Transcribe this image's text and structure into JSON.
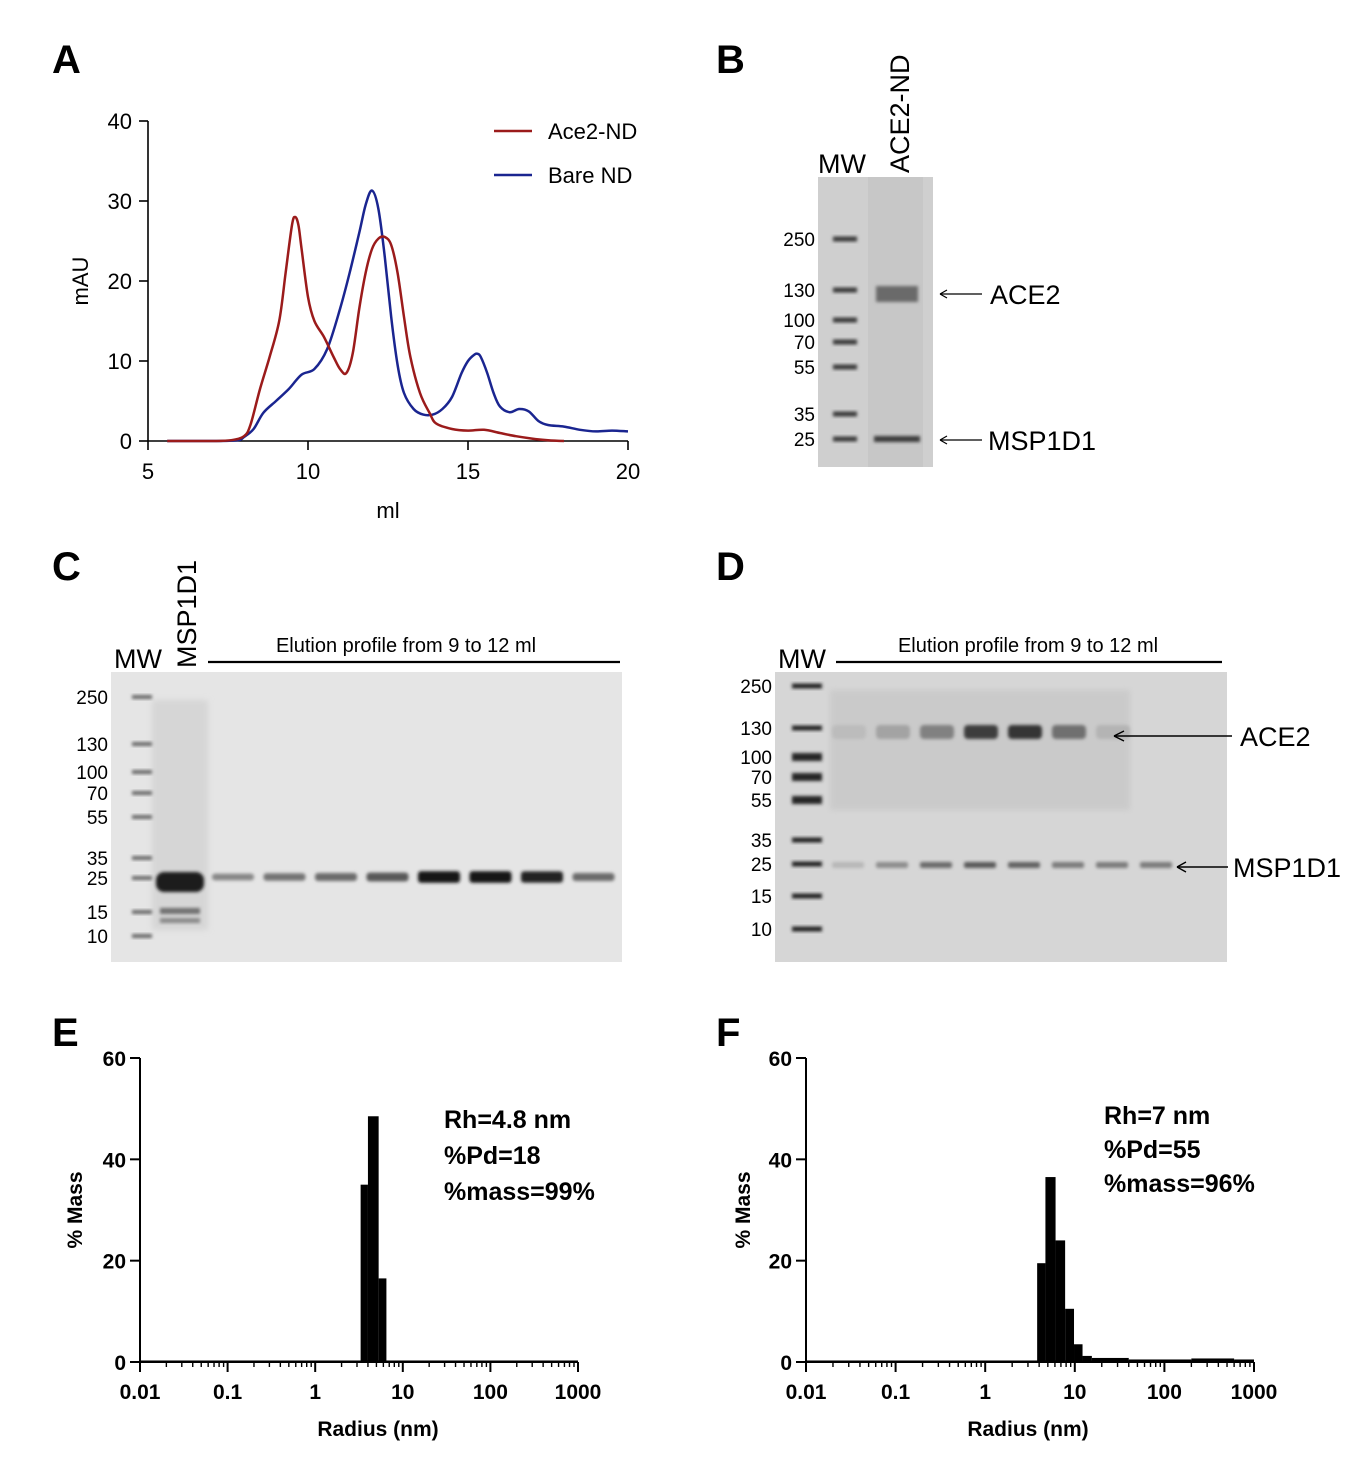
{
  "panel_labels": {
    "a": "A",
    "b": "B",
    "c": "C",
    "d": "D",
    "e": "E",
    "f": "F"
  },
  "chart_data": [
    {
      "panel": "A",
      "type": "line",
      "xlabel": "ml",
      "ylabel": "mAU",
      "xlim": [
        5,
        20
      ],
      "ylim": [
        0,
        40
      ],
      "xticks": [
        "5",
        "10",
        "15",
        "20"
      ],
      "yticks": [
        "0",
        "10",
        "20",
        "30",
        "40"
      ],
      "legend_position": "top-right",
      "grid": false,
      "series": [
        {
          "name": "Ace2-ND",
          "color": "#9b1b1b",
          "x": [
            5.6,
            7.0,
            7.6,
            8.0,
            8.2,
            8.5,
            8.8,
            9.1,
            9.3,
            9.5,
            9.6,
            9.7,
            9.8,
            10.0,
            10.2,
            10.5,
            10.8,
            11.0,
            11.2,
            11.4,
            11.6,
            11.8,
            12.0,
            12.2,
            12.4,
            12.6,
            12.8,
            13.0,
            13.2,
            13.5,
            13.8,
            14.0,
            14.5,
            15.0,
            15.5,
            16.0,
            16.5,
            17.0,
            17.5,
            18.0
          ],
          "y": [
            0,
            0,
            0.1,
            0.6,
            2.0,
            6.5,
            10.5,
            15.0,
            21.0,
            27.0,
            28.0,
            27.0,
            24.0,
            18.0,
            15.0,
            13.0,
            10.5,
            9.0,
            8.5,
            11.0,
            16.5,
            21.0,
            24.0,
            25.3,
            25.5,
            24.5,
            21.0,
            15.5,
            10.5,
            6.0,
            3.5,
            2.2,
            1.5,
            1.3,
            1.4,
            1.0,
            0.6,
            0.3,
            0.1,
            0
          ]
        },
        {
          "name": "Bare ND",
          "color": "#1a2590",
          "x": [
            5.6,
            7.0,
            7.8,
            8.0,
            8.3,
            8.6,
            9.0,
            9.4,
            9.8,
            10.2,
            10.6,
            11.0,
            11.3,
            11.6,
            11.8,
            12.0,
            12.2,
            12.4,
            12.6,
            12.8,
            13.0,
            13.3,
            13.6,
            13.9,
            14.2,
            14.5,
            14.8,
            15.0,
            15.2,
            15.3,
            15.4,
            15.6,
            15.8,
            16.0,
            16.3,
            16.6,
            16.9,
            17.2,
            17.5,
            18.0,
            18.5,
            19.0,
            19.5,
            20.0
          ],
          "y": [
            0,
            0,
            0.1,
            0.5,
            1.5,
            3.5,
            5.0,
            6.5,
            8.3,
            9.0,
            11.5,
            16.5,
            21.0,
            26.0,
            29.5,
            31.3,
            29.0,
            23.0,
            15.5,
            9.5,
            6.0,
            4.0,
            3.3,
            3.3,
            4.0,
            5.5,
            8.5,
            10.0,
            10.8,
            10.9,
            10.5,
            8.5,
            6.0,
            4.3,
            3.6,
            4.0,
            3.7,
            2.5,
            2.0,
            1.8,
            1.4,
            1.2,
            1.3,
            1.2
          ]
        }
      ]
    },
    {
      "panel": "E",
      "type": "bar",
      "xlabel": "Radius (nm)",
      "ylabel": "% Mass",
      "xscale": "log",
      "xlim": [
        0.01,
        1000
      ],
      "ylim": [
        0,
        60
      ],
      "xticks": [
        "0.01",
        "0.1",
        "1",
        "10",
        "100",
        "1000"
      ],
      "yticks": [
        "0",
        "20",
        "40",
        "60"
      ],
      "annotations": [
        "Rh=4.8 nm",
        "%Pd=18",
        "%mass=99%"
      ],
      "bins": [
        {
          "x0": 3.3,
          "x1": 4.0,
          "value": 35
        },
        {
          "x0": 4.0,
          "x1": 5.3,
          "value": 48.5
        },
        {
          "x0": 5.3,
          "x1": 6.5,
          "value": 16.5
        }
      ],
      "baseline_value": 0.3
    },
    {
      "panel": "F",
      "type": "bar",
      "xlabel": "Radius (nm)",
      "ylabel": "% Mass",
      "xscale": "log",
      "xlim": [
        0.01,
        1000
      ],
      "ylim": [
        0,
        60
      ],
      "xticks": [
        "0.01",
        "0.1",
        "1",
        "10",
        "100",
        "1000"
      ],
      "yticks": [
        "0",
        "20",
        "40",
        "60"
      ],
      "annotations": [
        "Rh=7 nm",
        "%Pd=55",
        "%mass=96%"
      ],
      "bins": [
        {
          "x0": 3.8,
          "x1": 4.7,
          "value": 19.5
        },
        {
          "x0": 4.7,
          "x1": 6.1,
          "value": 36.5
        },
        {
          "x0": 6.1,
          "x1": 7.8,
          "value": 24
        },
        {
          "x0": 7.8,
          "x1": 9.8,
          "value": 10.5
        },
        {
          "x0": 9.8,
          "x1": 12.2,
          "value": 3.5
        },
        {
          "x0": 12.2,
          "x1": 15.5,
          "value": 1.2
        },
        {
          "x0": 15.5,
          "x1": 40,
          "value": 0.8
        },
        {
          "x0": 40,
          "x1": 200,
          "value": 0.5
        },
        {
          "x0": 200,
          "x1": 600,
          "value": 0.7
        },
        {
          "x0": 600,
          "x1": 1000,
          "value": 0.5
        }
      ],
      "baseline_value": 0.3
    }
  ],
  "gel_b": {
    "header_mw": "MW",
    "lane_label": "ACE2-ND",
    "markers": [
      "250",
      "130",
      "100",
      "70",
      "55",
      "35",
      "25"
    ],
    "marker_kda": [
      250,
      130,
      100,
      70,
      55,
      35,
      25
    ],
    "annotations": [
      "ACE2",
      "MSP1D1"
    ]
  },
  "gel_c": {
    "header_mw": "MW",
    "lane_label": "MSP1D1",
    "header_text": "Elution profile from 9 to 12 ml",
    "markers": [
      "250",
      "130",
      "100",
      "70",
      "55",
      "35",
      "25",
      "15",
      "10"
    ],
    "marker_kda": [
      250,
      130,
      100,
      70,
      55,
      35,
      25,
      15,
      10
    ],
    "band_intensity": [
      0.35,
      0.45,
      0.5,
      0.6,
      0.95,
      0.95,
      0.9,
      0.5
    ]
  },
  "gel_d": {
    "header_mw": "MW",
    "header_text": "Elution profile from 9 to 12 ml",
    "markers": [
      "250",
      "130",
      "100",
      "70",
      "55",
      "35",
      "25",
      "15",
      "10"
    ],
    "marker_kda": [
      250,
      130,
      100,
      70,
      55,
      35,
      25,
      15,
      10
    ],
    "annotations": [
      "ACE2",
      "MSP1D1"
    ],
    "ace2_intensity": [
      0.1,
      0.25,
      0.45,
      0.85,
      0.9,
      0.55,
      0.15,
      0.0
    ],
    "msp_intensity": [
      0.1,
      0.35,
      0.55,
      0.65,
      0.6,
      0.45,
      0.45,
      0.45
    ]
  }
}
